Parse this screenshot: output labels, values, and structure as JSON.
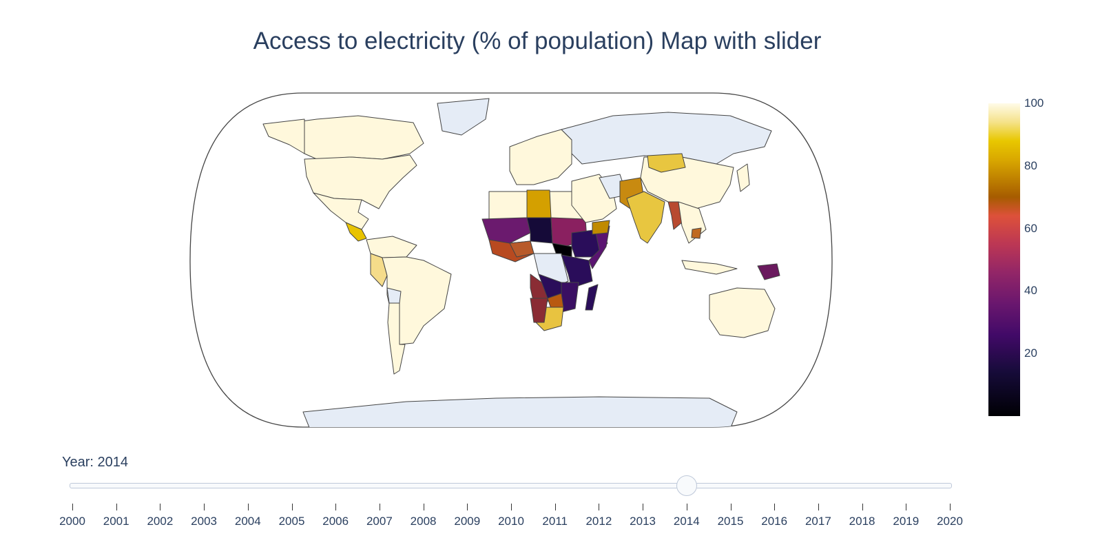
{
  "title": "Access to electricity (% of population) Map with slider",
  "colorbar": {
    "ticks": [
      "100",
      "80",
      "60",
      "40",
      "20"
    ],
    "colorscale": "inferno",
    "range": [
      0,
      100
    ]
  },
  "slider": {
    "prefix": "Year: ",
    "current": "2014",
    "current_index": 14,
    "steps": [
      "2000",
      "2001",
      "2002",
      "2003",
      "2004",
      "2005",
      "2006",
      "2007",
      "2008",
      "2009",
      "2010",
      "2011",
      "2012",
      "2013",
      "2014",
      "2015",
      "2016",
      "2017",
      "2018",
      "2019",
      "2020"
    ]
  },
  "colors": {
    "no_data": "#e5ecf6",
    "coast": "#444444",
    "text": "#2a3f5f"
  }
}
